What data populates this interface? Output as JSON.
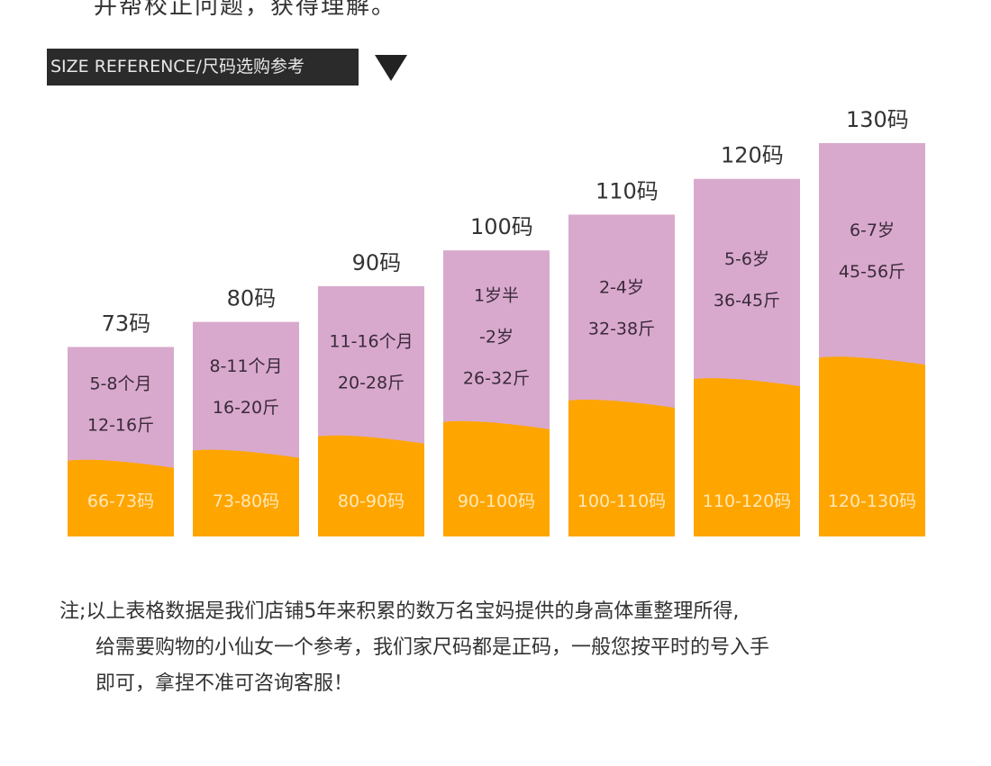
{
  "header": {
    "cut_text": "并帮校正问题，获得理解。",
    "title": "SIZE REFERENCE/尺码选购参考"
  },
  "colors": {
    "age": "#d8a9cd",
    "size_band": "#ffa500",
    "label_dark": "#3a2a3a",
    "label_light": "#ffe9b8"
  },
  "chart_data": {
    "type": "bar",
    "title": "SIZE REFERENCE/尺码选购参考",
    "categories": [
      "73码",
      "80码",
      "90码",
      "100码",
      "110码",
      "120码",
      "130码"
    ],
    "height_cm": [
      73,
      80,
      90,
      100,
      110,
      120,
      130
    ],
    "ylim": [
      0,
      140
    ],
    "series": [
      {
        "name": "height_range",
        "values": [
          "66-73码",
          "73-80码",
          "80-90码",
          "90-100码",
          "100-110码",
          "110-120码",
          "120-130码"
        ]
      },
      {
        "name": "age",
        "values": [
          [
            "5-8个月"
          ],
          [
            "8-11个月"
          ],
          [
            "11-16个月"
          ],
          [
            "1岁半",
            "-2岁"
          ],
          [
            "2-4岁"
          ],
          [
            "5-6岁"
          ],
          [
            "6-7岁"
          ]
        ]
      },
      {
        "name": "weight",
        "values": [
          "12-16斤",
          "16-20斤",
          "20-28斤",
          "26-32斤",
          "32-38斤",
          "36-45斤",
          "45-56斤"
        ]
      }
    ],
    "grid": false,
    "legend": "none"
  },
  "note": {
    "line1": "注;以上表格数据是我们店铺5年来积累的数万名宝妈提供的身高体重整理所得,",
    "line2": "给需要购物的小仙女一个参考，我们家尺码都是正码，一般您按平时的号入手",
    "line3": "即可，拿捏不准可咨询客服！"
  }
}
